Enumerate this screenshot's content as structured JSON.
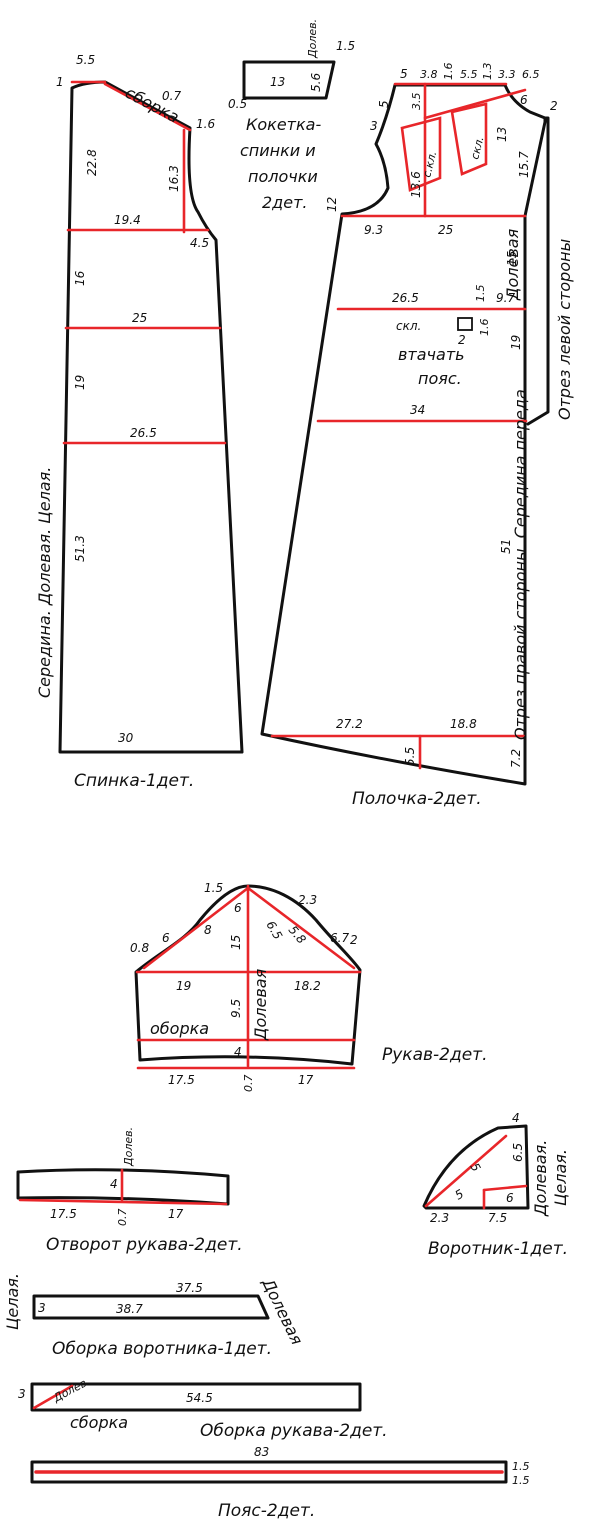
{
  "colors": {
    "outline": "#111111",
    "red": "#e8262a",
    "paper": "#ffffff"
  },
  "back": {
    "caption": "Спинка-1дет.",
    "center_label": "Середина. Долевая. Целая.",
    "gather": "сборка",
    "dims": {
      "top_corner": "1",
      "neck": "5.5",
      "shoulder": "0.7",
      "shoulder_pt": "1.6",
      "yoke_depth": "22.8",
      "armhole": "16.3",
      "chest": "19.4",
      "side_pt": "4.5",
      "seg_16": "16",
      "waist": "25",
      "seg_19": "19",
      "hip": "26.5",
      "seg_513": "51.3",
      "hem": "30"
    }
  },
  "yoke": {
    "title": "Кокетка- спинки и полочки 2дет.",
    "title_lines": [
      "Кокетка-",
      "спинки и",
      "полочки",
      "2дет."
    ],
    "grain": "Долев.",
    "dims": {
      "top": "1.5",
      "left": "0.5",
      "length": "13",
      "height": "5.6"
    }
  },
  "front": {
    "caption": "Полочка-2дет.",
    "fold_label": "скл.",
    "dart_1": "с.кл.",
    "dart_2": "скл.",
    "grain": "Долевая",
    "pocket_note": "втачать пояс.",
    "pocket_lines": [
      "втачать",
      "пояс."
    ],
    "right_cut": "Отрез правой стороны. Середина переда",
    "left_cut": "Отрез левой стороны",
    "dims": {
      "neck_5": "5",
      "d_38": "3.8",
      "d_16": "1.6",
      "d_55": "5.5",
      "d_13": "1.3",
      "d_33": "3.3",
      "d_65": "6.5",
      "shoulder_5": "5",
      "shoulder_3": "3",
      "d_35": "3.5",
      "d_13b": "13",
      "d_136": "13.6",
      "d_6": "6",
      "d_2": "2",
      "d_157": "15.7",
      "armhole_12": "12",
      "chest_93": "9.3",
      "chest_25": "25",
      "seg_15": "15",
      "waist_265": "26.5",
      "d_15": "1.5",
      "d_97": "9.7",
      "pocket_2": "2",
      "pocket_16": "1.6",
      "seg_19": "19",
      "hip_34": "34",
      "seg_51": "51",
      "hem_272": "27.2",
      "hem_188": "18.8",
      "hem_55": "5.5",
      "hem_72": "7.2"
    }
  },
  "sleeve": {
    "caption": "Рукав-2дет.",
    "grain": "Долевая",
    "gather": "оборка",
    "dims": {
      "top_15": "1.5",
      "seg_23": "2.3",
      "seg_6a": "6",
      "seg_65": "6.5",
      "seg_6b": "6",
      "seg_8": "8",
      "seg_58": "5.8",
      "seg_15b": "15",
      "seg_08": "0.8",
      "seg_67": "6.7",
      "seg_2": "2",
      "width_19": "19",
      "width_182": "18.2",
      "seg_95": "9.5",
      "seg_4": "4",
      "hem_175": "17.5",
      "hem_07": "0.7",
      "hem_17": "17"
    }
  },
  "cuff": {
    "caption": "Отворот рукава-2дет.",
    "grain": "Долев.",
    "dims": {
      "height": "4",
      "left": "17.5",
      "mid": "0.7",
      "right": "17"
    }
  },
  "collar": {
    "caption": "Воротник-1дет.",
    "grain": "Долевая. Целая.",
    "grain_lines": [
      "Долевая.",
      "Целая."
    ],
    "dims": {
      "top": "4",
      "side": "6.5",
      "diag": "5",
      "small": "5",
      "side_6": "6",
      "bottom_23": "2.3",
      "bottom_75": "7.5"
    }
  },
  "collar_frill": {
    "caption": "Оборка воротника-1дет.",
    "left_label": "Целая.",
    "right_label": "Долевая",
    "dims": {
      "height": "3",
      "top": "37.5",
      "length": "38.7"
    }
  },
  "sleeve_frill": {
    "caption": "Оборка рукава-2дет.",
    "grain": "Долев.",
    "gather": "сборка",
    "dims": {
      "height": "3",
      "length": "54.5"
    }
  },
  "belt": {
    "caption": "Пояс-2дет.",
    "dims": {
      "length": "83",
      "h1": "1.5",
      "h2": "1.5"
    }
  }
}
